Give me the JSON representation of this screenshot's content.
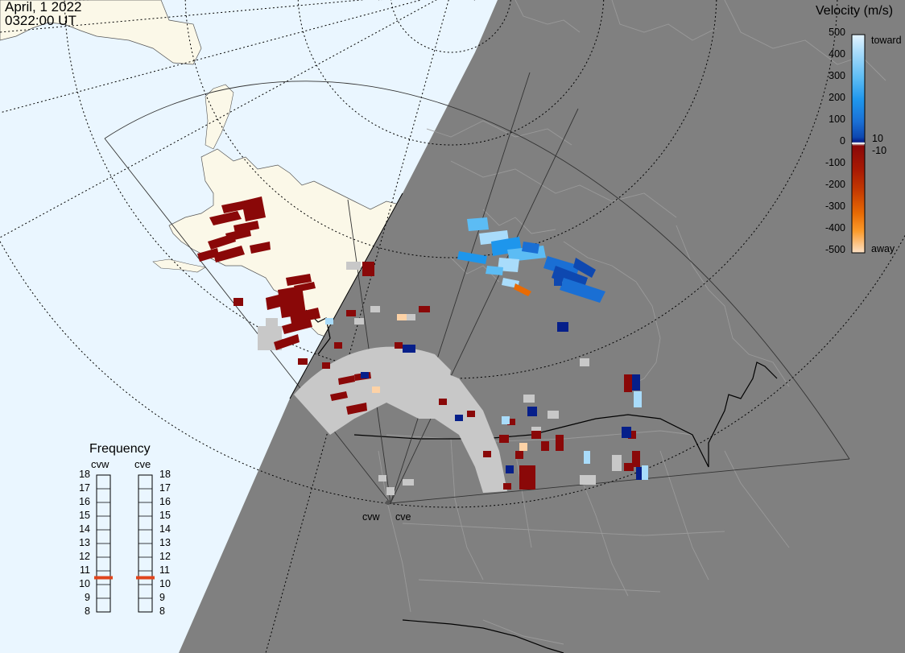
{
  "header": {
    "date": "April, 1 2022",
    "time": "0322:00 UT"
  },
  "colorbar": {
    "title": "Velocity (m/s)",
    "ticks": [
      "500",
      "400",
      "300",
      "200",
      "100",
      "0",
      "-100",
      "-200",
      "-300",
      "-400",
      "-500"
    ],
    "inner_ticks": [
      "10",
      "-10"
    ],
    "toward_label": "toward",
    "away_label": "away",
    "colors": [
      "#ddf0ff",
      "#a9dcfb",
      "#5cbcf4",
      "#1e96ec",
      "#1a6fd4",
      "#0e48b0",
      "#061f8a",
      "#8a0808",
      "#a81a04",
      "#c63c02",
      "#e86b04",
      "#fb9a2a",
      "#fdd2a6"
    ]
  },
  "frequency": {
    "title": "Frequency",
    "radars": [
      {
        "label": "cvw",
        "mhz": 10.5
      },
      {
        "label": "cve",
        "mhz": 10.5
      }
    ],
    "scale": [
      "18",
      "17",
      "16",
      "15",
      "14",
      "13",
      "12",
      "11",
      "10",
      "9",
      "8"
    ],
    "marker_color": "#e0441c"
  },
  "sites": [
    {
      "label": "cvw"
    },
    {
      "label": "cve"
    }
  ],
  "map_colors": {
    "ocean": "#eaf6ff",
    "land": "#fbf8e8",
    "night": "#808080",
    "ground_scatter": "#c8c8c8",
    "border_night": "#9a9a9a",
    "coast_day": "#444444"
  }
}
